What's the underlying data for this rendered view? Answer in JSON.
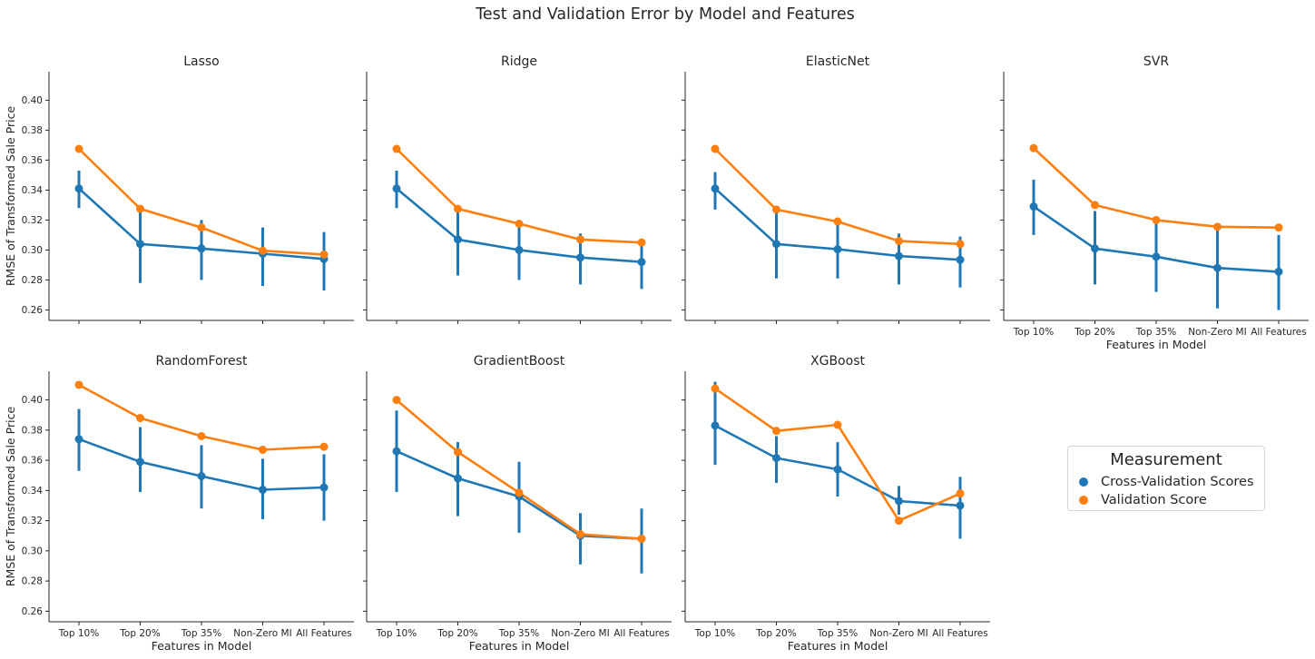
{
  "suptitle": "Test and Validation Error by Model and Features",
  "colors": {
    "cv": "#1f77b4",
    "val": "#ff7f0e",
    "axis": "#262626"
  },
  "legend": {
    "title": "Measurement",
    "entries": [
      "Cross-Validation Scores",
      "Validation Score"
    ]
  },
  "chart_data": {
    "type": "line",
    "xlabel": "Features in Model",
    "ylabel": "RMSE of Transformed Sale Price",
    "categories": [
      "Top 10%",
      "Top 20%",
      "Top 35%",
      "Non-Zero MI",
      "All Features"
    ],
    "ylim": [
      0.253,
      0.419
    ],
    "yticks": [
      0.26,
      0.28,
      0.3,
      0.32,
      0.34,
      0.36,
      0.38,
      0.4
    ],
    "ytick_labels": [
      "0.26",
      "0.28",
      "0.30",
      "0.32",
      "0.34",
      "0.36",
      "0.38",
      "0.40"
    ],
    "grid": false,
    "legend_position": "right",
    "panels": [
      {
        "title": "Lasso",
        "cv": [
          0.341,
          0.304,
          0.301,
          0.2975,
          0.294
        ],
        "cv_err": [
          [
            0.328,
            0.353
          ],
          [
            0.278,
            0.328
          ],
          [
            0.28,
            0.32
          ],
          [
            0.276,
            0.315
          ],
          [
            0.273,
            0.312
          ]
        ],
        "val": [
          0.3675,
          0.3275,
          0.315,
          0.2995,
          0.297
        ]
      },
      {
        "title": "Ridge",
        "cv": [
          0.341,
          0.307,
          0.3,
          0.295,
          0.292
        ],
        "cv_err": [
          [
            0.328,
            0.353
          ],
          [
            0.283,
            0.328
          ],
          [
            0.28,
            0.318
          ],
          [
            0.277,
            0.311
          ],
          [
            0.274,
            0.307
          ]
        ],
        "val": [
          0.3675,
          0.3275,
          0.3175,
          0.307,
          0.305
        ]
      },
      {
        "title": "ElasticNet",
        "cv": [
          0.341,
          0.304,
          0.3005,
          0.296,
          0.2935
        ],
        "cv_err": [
          [
            0.327,
            0.352
          ],
          [
            0.281,
            0.325
          ],
          [
            0.281,
            0.318
          ],
          [
            0.277,
            0.311
          ],
          [
            0.275,
            0.309
          ]
        ],
        "val": [
          0.3675,
          0.327,
          0.319,
          0.306,
          0.304
        ]
      },
      {
        "title": "SVR",
        "cv": [
          0.329,
          0.301,
          0.2955,
          0.288,
          0.2855
        ],
        "cv_err": [
          [
            0.31,
            0.347
          ],
          [
            0.277,
            0.326
          ],
          [
            0.272,
            0.318
          ],
          [
            0.261,
            0.313
          ],
          [
            0.26,
            0.31
          ]
        ],
        "val": [
          0.368,
          0.33,
          0.32,
          0.3155,
          0.315
        ]
      },
      {
        "title": "RandomForest",
        "cv": [
          0.374,
          0.359,
          0.3495,
          0.3405,
          0.342
        ],
        "cv_err": [
          [
            0.353,
            0.394
          ],
          [
            0.339,
            0.382
          ],
          [
            0.328,
            0.37
          ],
          [
            0.321,
            0.361
          ],
          [
            0.32,
            0.364
          ]
        ],
        "val": [
          0.41,
          0.388,
          0.376,
          0.367,
          0.369
        ]
      },
      {
        "title": "GradientBoost",
        "cv": [
          0.366,
          0.348,
          0.336,
          0.31,
          0.308
        ],
        "cv_err": [
          [
            0.339,
            0.393
          ],
          [
            0.323,
            0.372
          ],
          [
            0.312,
            0.359
          ],
          [
            0.291,
            0.325
          ],
          [
            0.285,
            0.328
          ]
        ],
        "val": [
          0.4,
          0.3655,
          0.3385,
          0.311,
          0.308
        ]
      },
      {
        "title": "XGBoost",
        "cv": [
          0.383,
          0.3615,
          0.354,
          0.333,
          0.33
        ],
        "cv_err": [
          [
            0.357,
            0.412
          ],
          [
            0.345,
            0.376
          ],
          [
            0.336,
            0.372
          ],
          [
            0.324,
            0.343
          ],
          [
            0.308,
            0.349
          ]
        ],
        "val": [
          0.4075,
          0.3795,
          0.3835,
          0.32,
          0.338
        ]
      }
    ]
  }
}
